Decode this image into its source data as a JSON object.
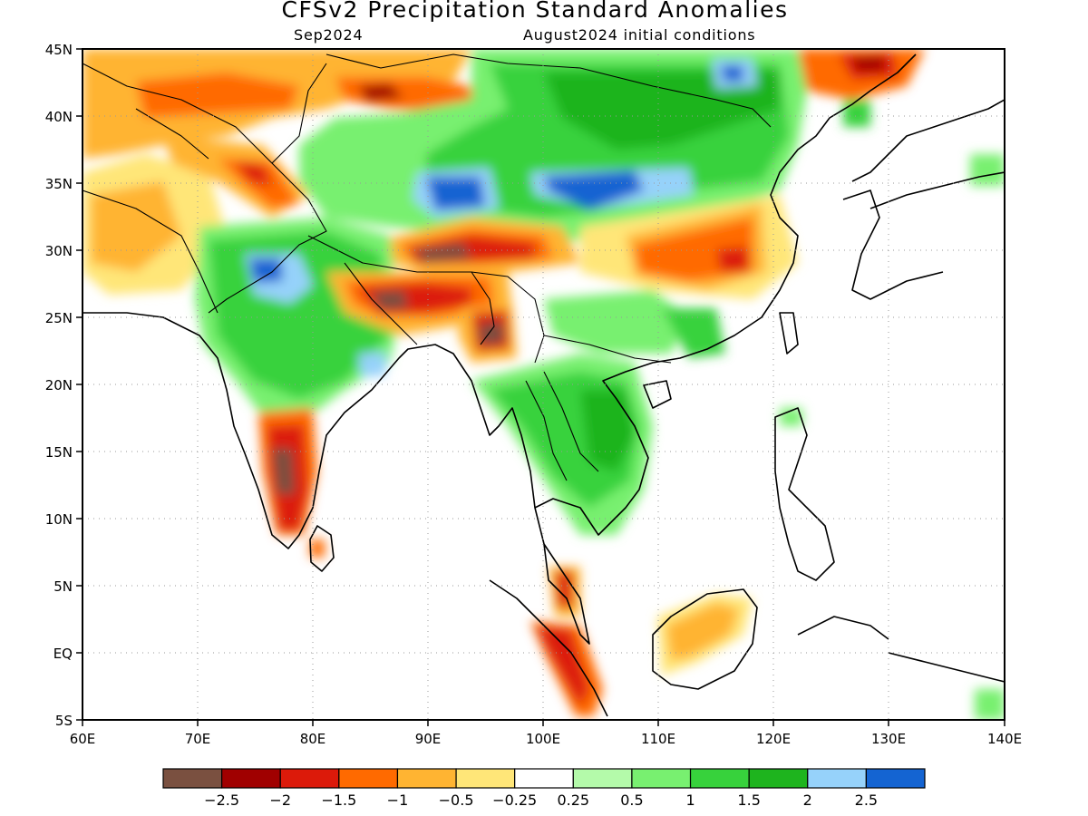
{
  "title": "CFSv2 Precipitation Standard Anomalies",
  "subtitle_left": "Sep2024",
  "subtitle_right": "August2024 initial conditions",
  "map": {
    "lon_range": [
      60,
      140
    ],
    "lat_range": [
      -5,
      45
    ],
    "grid": "dotted",
    "lon_ticks": [
      "60E",
      "70E",
      "80E",
      "90E",
      "100E",
      "110E",
      "120E",
      "130E",
      "140E"
    ],
    "lat_ticks": [
      "45N",
      "40N",
      "35N",
      "30N",
      "25N",
      "20N",
      "15N",
      "10N",
      "5N",
      "EQ",
      "5S"
    ]
  },
  "colorbar": {
    "colors": [
      "#7a5040",
      "#a00000",
      "#dc1a0a",
      "#ff6a00",
      "#ffb432",
      "#ffe678",
      "#ffffff",
      "#b4faaa",
      "#78f070",
      "#37d23c",
      "#1eb41e",
      "#96d2fa",
      "#1464d2"
    ],
    "labels": [
      "−2.5",
      "−2",
      "−1.5",
      "−1",
      "−0.5",
      "−0.25",
      "0.25",
      "0.5",
      "1",
      "1.5",
      "2",
      "2.5"
    ]
  },
  "chart_data": {
    "type": "heatmap",
    "title": "CFSv2 Precipitation Standard Anomalies",
    "xlabel": "",
    "ylabel": "",
    "xlim": [
      60,
      140
    ],
    "ylim": [
      -5,
      45
    ],
    "units": "standard anomaly",
    "levels": [
      -2.5,
      -2,
      -1.5,
      -1,
      -0.5,
      -0.25,
      0.25,
      0.5,
      1,
      1.5,
      2,
      2.5
    ],
    "regions": [
      {
        "lon": 78.5,
        "lat": 28.5,
        "value": 1.5
      },
      {
        "lon": 77.5,
        "lat": 25.5,
        "value": 2.5
      },
      {
        "lon": 80,
        "lat": 22,
        "value": 1.5
      },
      {
        "lon": 92,
        "lat": 35,
        "value": 3
      },
      {
        "lon": 103,
        "lat": 34.8,
        "value": 3
      },
      {
        "lon": 108,
        "lat": 36.5,
        "value": 1
      },
      {
        "lon": 115,
        "lat": 39,
        "value": 1.5
      },
      {
        "lon": 117,
        "lat": 43.5,
        "value": 2.5
      },
      {
        "lon": 102,
        "lat": 17,
        "value": 1
      },
      {
        "lon": 106.5,
        "lat": 13,
        "value": 1.5
      },
      {
        "lon": 90,
        "lat": 29.5,
        "value": -2.5
      },
      {
        "lon": 87.5,
        "lat": 26.5,
        "value": -2
      },
      {
        "lon": 95,
        "lat": 23.5,
        "value": -2
      },
      {
        "lon": 77,
        "lat": 14,
        "value": -2.5
      },
      {
        "lon": 113,
        "lat": 29.5,
        "value": -1.2
      },
      {
        "lon": 129,
        "lat": 43.5,
        "value": -2
      },
      {
        "lon": 72,
        "lat": 42,
        "value": -1
      },
      {
        "lon": 87,
        "lat": 41.5,
        "value": -1.5
      },
      {
        "lon": 66,
        "lat": 31,
        "value": -0.6
      },
      {
        "lon": 102,
        "lat": 1,
        "value": -1.5
      },
      {
        "lon": 113,
        "lat": 2,
        "value": -0.5
      }
    ]
  }
}
